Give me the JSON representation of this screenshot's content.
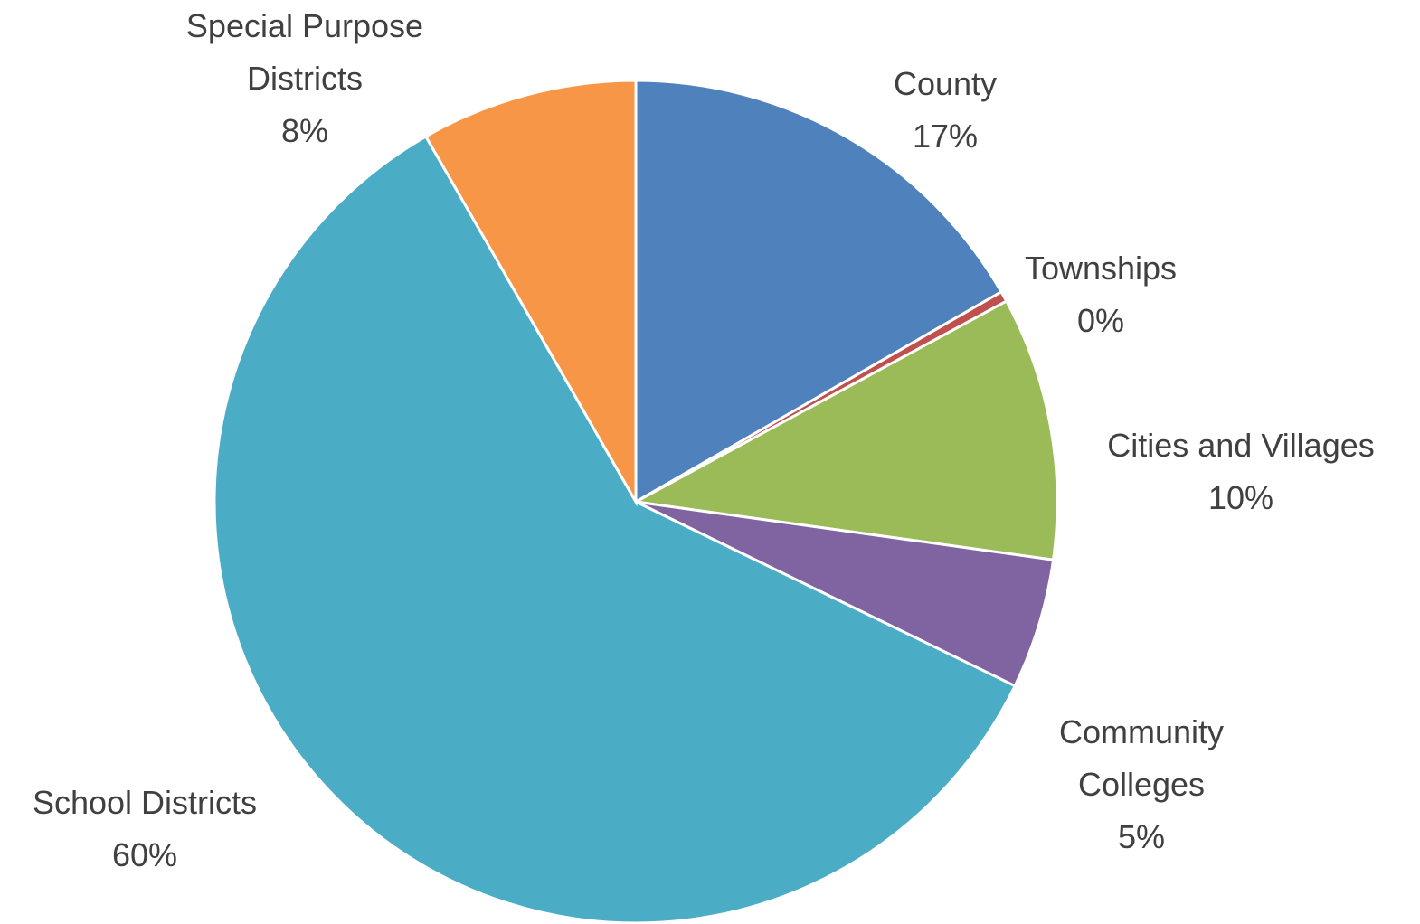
{
  "chart_data": {
    "type": "pie",
    "categories": [
      "County",
      "Townships",
      "Cities and Villages",
      "Community Colleges",
      "School Districts",
      "Special Purpose Districts"
    ],
    "values": [
      16.7,
      0.4,
      10.1,
      5.0,
      59.5,
      8.3
    ],
    "value_labels": [
      "17%",
      "0%",
      "10%",
      "5%",
      "60%",
      "8%"
    ],
    "colors": [
      "#4f81bd",
      "#c0504d",
      "#9bbb59",
      "#8064a2",
      "#4bacc6",
      "#f79646"
    ]
  }
}
